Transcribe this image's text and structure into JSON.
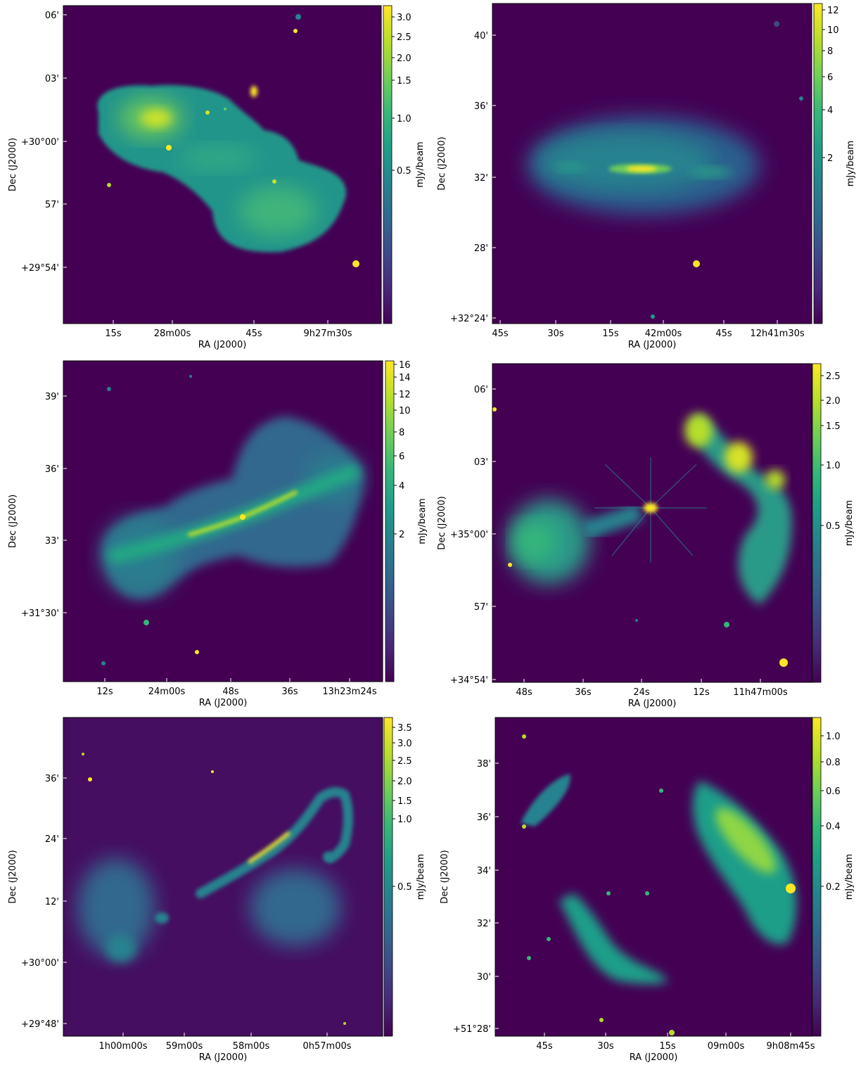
{
  "colors": {
    "background": "#440154",
    "viridis": [
      "#440154",
      "#482878",
      "#3e4a89",
      "#31688e",
      "#26828e",
      "#1f9e89",
      "#35b779",
      "#6ece58",
      "#b5de2b",
      "#fde725"
    ]
  },
  "panels": [
    {
      "name": "panel-1",
      "ra_label": "RA (J2000)",
      "dec_label": "Dec (J2000)",
      "ra_ticks": [
        "15s",
        "28m00s",
        "45s",
        "9h27m30s"
      ],
      "dec_ticks": [
        "06'",
        "03'",
        "+30°00'",
        "57'",
        "+29°54'"
      ],
      "colorbar_label": "mJy/beam",
      "colorbar_ticks": [
        "3.0",
        "2.5",
        "2.0",
        "1.5",
        "1.0",
        "0.5"
      ]
    },
    {
      "name": "panel-2",
      "ra_label": "RA (J2000)",
      "dec_label": "Dec (J2000)",
      "ra_ticks": [
        "45s",
        "30s",
        "15s",
        "42m00s",
        "45s",
        "12h41m30s"
      ],
      "dec_ticks": [
        "40'",
        "36'",
        "32'",
        "28'",
        "+32°24'"
      ],
      "colorbar_label": "mJy/beam",
      "colorbar_ticks": [
        "12",
        "10",
        "8",
        "6",
        "4",
        "2"
      ]
    },
    {
      "name": "panel-3",
      "ra_label": "RA (J2000)",
      "dec_label": "Dec (J2000)",
      "ra_ticks": [
        "12s",
        "24m00s",
        "48s",
        "36s",
        "13h23m24s"
      ],
      "dec_ticks": [
        "39'",
        "36'",
        "33'",
        "+31°30'"
      ],
      "colorbar_label": "mJy/beam",
      "colorbar_ticks": [
        "16",
        "14",
        "12",
        "10",
        "8",
        "6",
        "4",
        "2"
      ]
    },
    {
      "name": "panel-4",
      "ra_label": "RA (J2000)",
      "dec_label": "Dec (J2000)",
      "ra_ticks": [
        "48s",
        "36s",
        "24s",
        "12s",
        "11h47m00s"
      ],
      "dec_ticks": [
        "06'",
        "03'",
        "+35°00'",
        "57'",
        "+34°54'"
      ],
      "colorbar_label": "mJy/beam",
      "colorbar_ticks": [
        "2.5",
        "2.0",
        "1.5",
        "1.0",
        "0.5"
      ]
    },
    {
      "name": "panel-5",
      "ra_label": "RA (J2000)",
      "dec_label": "Dec (J2000)",
      "ra_ticks": [
        "1h00m00s",
        "59m00s",
        "58m00s",
        "0h57m00s"
      ],
      "dec_ticks": [
        "36'",
        "24'",
        "12'",
        "+30°00'",
        "+29°48'"
      ],
      "colorbar_label": "mJy/beam",
      "colorbar_ticks": [
        "3.5",
        "3.0",
        "2.5",
        "2.0",
        "1.5",
        "1.0",
        "0.5"
      ]
    },
    {
      "name": "panel-6",
      "ra_label": "RA (J2000)",
      "dec_label": "Dec (J2000)",
      "ra_ticks": [
        "45s",
        "30s",
        "15s",
        "09m00s",
        "9h08m45s"
      ],
      "dec_ticks": [
        "38'",
        "36'",
        "34'",
        "32'",
        "30'",
        "+51°28'"
      ],
      "colorbar_label": "mJy/beam",
      "colorbar_ticks": [
        "1.0",
        "0.8",
        "0.6",
        "0.4",
        "0.2"
      ]
    }
  ]
}
